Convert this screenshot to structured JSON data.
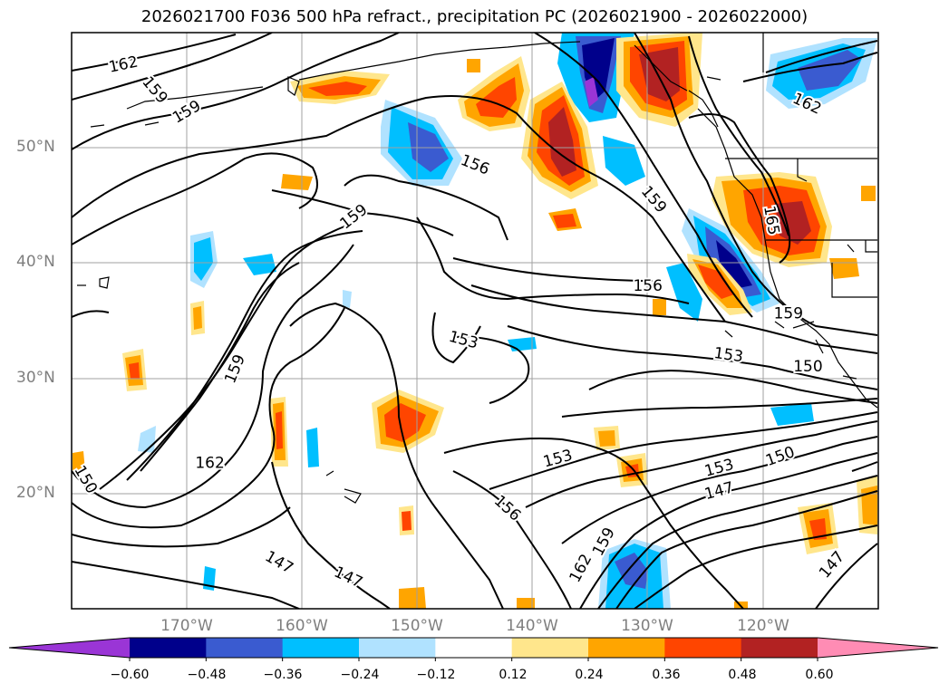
{
  "title": "2026021700 F036 500 hPa refract., precipitation PC (2026021900 - 2026022000)",
  "map": {
    "projection": "PlateCarree",
    "lon_range": [
      -180,
      -110
    ],
    "lat_range": [
      10,
      60
    ],
    "lat_labels": [
      {
        "lat": 50,
        "text": "50°N"
      },
      {
        "lat": 40,
        "text": "40°N"
      },
      {
        "lat": 30,
        "text": "30°N"
      },
      {
        "lat": 20,
        "text": "20°N"
      }
    ],
    "lon_labels": [
      {
        "lon": -170,
        "text": "170°W"
      },
      {
        "lon": -160,
        "text": "160°W"
      },
      {
        "lon": -150,
        "text": "150°W"
      },
      {
        "lon": -140,
        "text": "140°W"
      },
      {
        "lon": -130,
        "text": "130°W"
      },
      {
        "lon": -120,
        "text": "120°W"
      }
    ],
    "contour_labels": [
      {
        "text": "162",
        "lon": -175.5,
        "lat": 57.2,
        "rot": -12
      },
      {
        "text": "159",
        "lon": -172.8,
        "lat": 55.0,
        "rot": 50
      },
      {
        "text": "159",
        "lon": -170.0,
        "lat": 53.1,
        "rot": -30
      },
      {
        "text": "156",
        "lon": -145.0,
        "lat": 48.5,
        "rot": 22
      },
      {
        "text": "159",
        "lon": -155.5,
        "lat": 44.0,
        "rot": -38
      },
      {
        "text": "159",
        "lon": -129.5,
        "lat": 45.5,
        "rot": 50
      },
      {
        "text": "165",
        "lon": -119.3,
        "lat": 43.7,
        "rot": 80
      },
      {
        "text": "162",
        "lon": -116.2,
        "lat": 53.8,
        "rot": 25
      },
      {
        "text": "156",
        "lon": -130.0,
        "lat": 38.0,
        "rot": 0
      },
      {
        "text": "159",
        "lon": -117.8,
        "lat": 35.6,
        "rot": 0
      },
      {
        "text": "153",
        "lon": -123.0,
        "lat": 32.0,
        "rot": 8
      },
      {
        "text": "150",
        "lon": -116.1,
        "lat": 31.0,
        "rot": 0
      },
      {
        "text": "153",
        "lon": -146.0,
        "lat": 33.3,
        "rot": 15
      },
      {
        "text": "159",
        "lon": -165.8,
        "lat": 30.8,
        "rot": -68
      },
      {
        "text": "162",
        "lon": -168.0,
        "lat": 22.6,
        "rot": 0
      },
      {
        "text": "150",
        "lon": -178.8,
        "lat": 21.2,
        "rot": 60
      },
      {
        "text": "153",
        "lon": -137.8,
        "lat": 23.0,
        "rot": -15
      },
      {
        "text": "156",
        "lon": -142.2,
        "lat": 18.7,
        "rot": 42
      },
      {
        "text": "153",
        "lon": -123.8,
        "lat": 22.2,
        "rot": -15
      },
      {
        "text": "150",
        "lon": -118.5,
        "lat": 23.2,
        "rot": -20
      },
      {
        "text": "147",
        "lon": -123.8,
        "lat": 20.2,
        "rot": -15
      },
      {
        "text": "147",
        "lon": -162.0,
        "lat": 14.0,
        "rot": 30
      },
      {
        "text": "147",
        "lon": -156.0,
        "lat": 12.7,
        "rot": 25
      },
      {
        "text": "162",
        "lon": -135.8,
        "lat": 13.5,
        "rot": -62
      },
      {
        "text": "159",
        "lon": -133.8,
        "lat": 15.8,
        "rot": -62
      },
      {
        "text": "147",
        "lon": -114.0,
        "lat": 13.8,
        "rot": -50
      }
    ]
  },
  "colorbar": {
    "ticks": [
      "−0.60",
      "−0.48",
      "−0.36",
      "−0.24",
      "−0.12",
      "0.12",
      "0.24",
      "0.36",
      "0.48",
      "0.60"
    ],
    "colors": [
      "#9a35d6",
      "#00008b",
      "#3a5bd0",
      "#00bfff",
      "#b0e2ff",
      "#ffffff",
      "#ffe68c",
      "#ffa500",
      "#ff4500",
      "#b22222",
      "#ff8cb4"
    ]
  }
}
